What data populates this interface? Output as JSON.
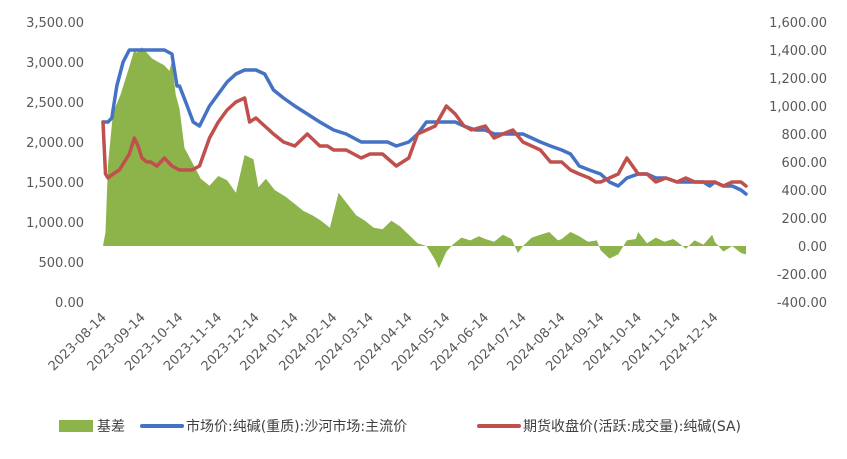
{
  "chart_data": {
    "type": "line",
    "title": "",
    "xlabel": "",
    "ylabel": "",
    "x_tick_labels": [
      "2023-08-14",
      "2023-09-14",
      "2023-10-14",
      "2023-11-14",
      "2023-12-14",
      "2024-01-14",
      "2024-02-14",
      "2024-03-14",
      "2024-04-14",
      "2024-05-14",
      "2024-06-14",
      "2024-07-14",
      "2024-08-14",
      "2024-09-14",
      "2024-10-14",
      "2024-11-14",
      "2024-12-14"
    ],
    "xlim": [
      "2023-08-14",
      "2025-01-08"
    ],
    "y_left": {
      "lim": [
        0,
        3500
      ],
      "ticks": [
        "0.00",
        "500.00",
        "1,000.00",
        "1,500.00",
        "2,000.00",
        "2,500.00",
        "3,000.00",
        "3,500.00"
      ]
    },
    "y_right": {
      "lim": [
        -400,
        1600
      ],
      "ticks": [
        "-400.00",
        "-200.00",
        "0.00",
        "200.00",
        "400.00",
        "600.00",
        "800.00",
        "1,000.00",
        "1,200.00",
        "1,400.00",
        "1,600.00"
      ]
    },
    "legend_position": "bottom",
    "series": [
      {
        "name": "基差",
        "type": "area",
        "axis": "right",
        "color": "#8DB34B",
        "x": [
          "2023-08-14",
          "2023-08-16",
          "2023-08-18",
          "2023-08-22",
          "2023-08-28",
          "2023-09-04",
          "2023-09-08",
          "2023-09-10",
          "2023-09-14",
          "2023-09-18",
          "2023-09-22",
          "2023-09-26",
          "2023-10-02",
          "2023-10-06",
          "2023-10-08",
          "2023-10-11",
          "2023-10-14",
          "2023-10-18",
          "2023-10-24",
          "2023-10-31",
          "2023-11-07",
          "2023-11-14",
          "2023-11-21",
          "2023-11-28",
          "2023-12-05",
          "2023-12-12",
          "2023-12-16",
          "2023-12-22",
          "2023-12-29",
          "2024-01-07",
          "2024-01-14",
          "2024-01-21",
          "2024-01-28",
          "2024-02-04",
          "2024-02-11",
          "2024-02-18",
          "2024-02-25",
          "2024-03-03",
          "2024-03-10",
          "2024-03-17",
          "2024-03-24",
          "2024-03-31",
          "2024-04-07",
          "2024-04-14",
          "2024-04-21",
          "2024-04-28",
          "2024-05-01",
          "2024-05-05",
          "2024-05-08",
          "2024-05-12",
          "2024-05-14",
          "2024-05-19",
          "2024-05-26",
          "2024-06-02",
          "2024-06-09",
          "2024-06-14",
          "2024-06-21",
          "2024-06-28",
          "2024-07-05",
          "2024-07-10",
          "2024-07-14",
          "2024-07-21",
          "2024-07-28",
          "2024-08-04",
          "2024-08-11",
          "2024-08-14",
          "2024-08-21",
          "2024-08-28",
          "2024-09-04",
          "2024-09-11",
          "2024-09-14",
          "2024-09-21",
          "2024-09-28",
          "2024-10-05",
          "2024-10-12",
          "2024-10-14",
          "2024-10-21",
          "2024-10-28",
          "2024-11-04",
          "2024-11-11",
          "2024-11-14",
          "2024-11-21",
          "2024-11-28",
          "2024-12-05",
          "2024-12-12",
          "2024-12-14",
          "2024-12-21",
          "2024-12-28",
          "2025-01-04",
          "2025-01-08"
        ],
        "values": [
          0,
          100,
          580,
          950,
          1080,
          1280,
          1400,
          1380,
          1420,
          1380,
          1340,
          1320,
          1290,
          1250,
          1320,
          1080,
          980,
          700,
          600,
          480,
          430,
          500,
          470,
          380,
          650,
          620,
          420,
          480,
          400,
          350,
          300,
          250,
          220,
          180,
          130,
          380,
          300,
          220,
          180,
          130,
          120,
          180,
          140,
          80,
          20,
          0,
          -40,
          -100,
          -160,
          -80,
          -40,
          10,
          60,
          40,
          70,
          50,
          30,
          80,
          50,
          -50,
          0,
          60,
          80,
          100,
          40,
          50,
          100,
          70,
          30,
          40,
          -30,
          -90,
          -60,
          40,
          50,
          100,
          20,
          60,
          30,
          50,
          30,
          -20,
          40,
          10,
          80,
          30,
          -40,
          0,
          -50,
          -60
        ]
      },
      {
        "name": "市场价:纯碱(重质):沙河市场:主流价",
        "type": "line",
        "axis": "left",
        "color": "#4472C4",
        "x": [
          "2023-08-14",
          "2023-08-18",
          "2023-08-21",
          "2023-08-25",
          "2023-08-30",
          "2023-09-04",
          "2023-09-08",
          "2023-09-14",
          "2023-09-25",
          "2023-10-02",
          "2023-10-08",
          "2023-10-12",
          "2023-10-14",
          "2023-10-19",
          "2023-10-25",
          "2023-10-30",
          "2023-11-07",
          "2023-11-14",
          "2023-11-21",
          "2023-11-28",
          "2023-12-05",
          "2023-12-14",
          "2023-12-21",
          "2023-12-28",
          "2024-01-05",
          "2024-01-14",
          "2024-01-24",
          "2024-02-03",
          "2024-02-14",
          "2024-02-24",
          "2024-03-07",
          "2024-03-14",
          "2024-03-21",
          "2024-03-28",
          "2024-04-04",
          "2024-04-14",
          "2024-04-21",
          "2024-04-28",
          "2024-05-08",
          "2024-05-14",
          "2024-05-21",
          "2024-05-28",
          "2024-06-06",
          "2024-06-14",
          "2024-06-21",
          "2024-06-28",
          "2024-07-06",
          "2024-07-14",
          "2024-07-21",
          "2024-07-28",
          "2024-08-05",
          "2024-08-14",
          "2024-08-21",
          "2024-08-28",
          "2024-09-05",
          "2024-09-14",
          "2024-09-21",
          "2024-09-28",
          "2024-10-05",
          "2024-10-14",
          "2024-10-21",
          "2024-10-28",
          "2024-11-05",
          "2024-11-14",
          "2024-11-21",
          "2024-11-28",
          "2024-12-05",
          "2024-12-10",
          "2024-12-14",
          "2024-12-21",
          "2024-12-28",
          "2025-01-04",
          "2025-01-08"
        ],
        "values": [
          2250,
          2250,
          2300,
          2700,
          3000,
          3150,
          3150,
          3150,
          3150,
          3150,
          3100,
          2700,
          2700,
          2500,
          2250,
          2200,
          2450,
          2600,
          2750,
          2850,
          2900,
          2900,
          2850,
          2650,
          2550,
          2450,
          2350,
          2250,
          2150,
          2100,
          2000,
          2000,
          2000,
          2000,
          1950,
          2000,
          2100,
          2250,
          2250,
          2250,
          2250,
          2200,
          2150,
          2150,
          2100,
          2100,
          2100,
          2100,
          2050,
          2000,
          1950,
          1900,
          1850,
          1700,
          1650,
          1600,
          1500,
          1450,
          1550,
          1600,
          1600,
          1550,
          1550,
          1500,
          1500,
          1500,
          1500,
          1450,
          1500,
          1450,
          1450,
          1400,
          1350
        ]
      },
      {
        "name": "期货收盘价(活跃:成交量):纯碱(SA)",
        "type": "line",
        "axis": "left",
        "color": "#C0504D",
        "x": [
          "2023-08-14",
          "2023-08-16",
          "2023-08-18",
          "2023-08-22",
          "2023-08-27",
          "2023-09-04",
          "2023-09-08",
          "2023-09-11",
          "2023-09-14",
          "2023-09-18",
          "2023-09-21",
          "2023-09-26",
          "2023-10-02",
          "2023-10-08",
          "2023-10-14",
          "2023-10-19",
          "2023-10-24",
          "2023-10-30",
          "2023-11-07",
          "2023-11-14",
          "2023-11-21",
          "2023-11-28",
          "2023-12-05",
          "2023-12-09",
          "2023-12-14",
          "2023-12-21",
          "2023-12-28",
          "2024-01-05",
          "2024-01-14",
          "2024-01-24",
          "2024-02-03",
          "2024-02-09",
          "2024-02-14",
          "2024-02-24",
          "2024-03-07",
          "2024-03-14",
          "2024-03-24",
          "2024-04-04",
          "2024-04-14",
          "2024-04-21",
          "2024-04-28",
          "2024-05-05",
          "2024-05-14",
          "2024-05-21",
          "2024-05-28",
          "2024-06-03",
          "2024-06-14",
          "2024-06-21",
          "2024-06-28",
          "2024-07-06",
          "2024-07-14",
          "2024-07-21",
          "2024-07-28",
          "2024-08-05",
          "2024-08-14",
          "2024-08-21",
          "2024-08-28",
          "2024-09-05",
          "2024-09-10",
          "2024-09-14",
          "2024-09-21",
          "2024-09-28",
          "2024-10-05",
          "2024-10-14",
          "2024-10-21",
          "2024-10-28",
          "2024-11-05",
          "2024-11-14",
          "2024-11-21",
          "2024-11-28",
          "2024-12-05",
          "2024-12-14",
          "2024-12-21",
          "2024-12-28",
          "2025-01-04",
          "2025-01-08"
        ],
        "values": [
          2250,
          1600,
          1550,
          1600,
          1650,
          1850,
          2050,
          1950,
          1800,
          1750,
          1750,
          1700,
          1800,
          1700,
          1650,
          1650,
          1650,
          1700,
          2050,
          2250,
          2400,
          2500,
          2550,
          2250,
          2300,
          2200,
          2100,
          2000,
          1950,
          2100,
          1950,
          1950,
          1900,
          1900,
          1800,
          1850,
          1850,
          1700,
          1800,
          2100,
          2150,
          2200,
          2450,
          2350,
          2200,
          2150,
          2200,
          2050,
          2100,
          2150,
          2000,
          1950,
          1900,
          1750,
          1750,
          1650,
          1600,
          1550,
          1500,
          1500,
          1550,
          1600,
          1800,
          1600,
          1600,
          1500,
          1550,
          1500,
          1550,
          1500,
          1500,
          1500,
          1450,
          1500,
          1500,
          1450
        ]
      }
    ]
  }
}
